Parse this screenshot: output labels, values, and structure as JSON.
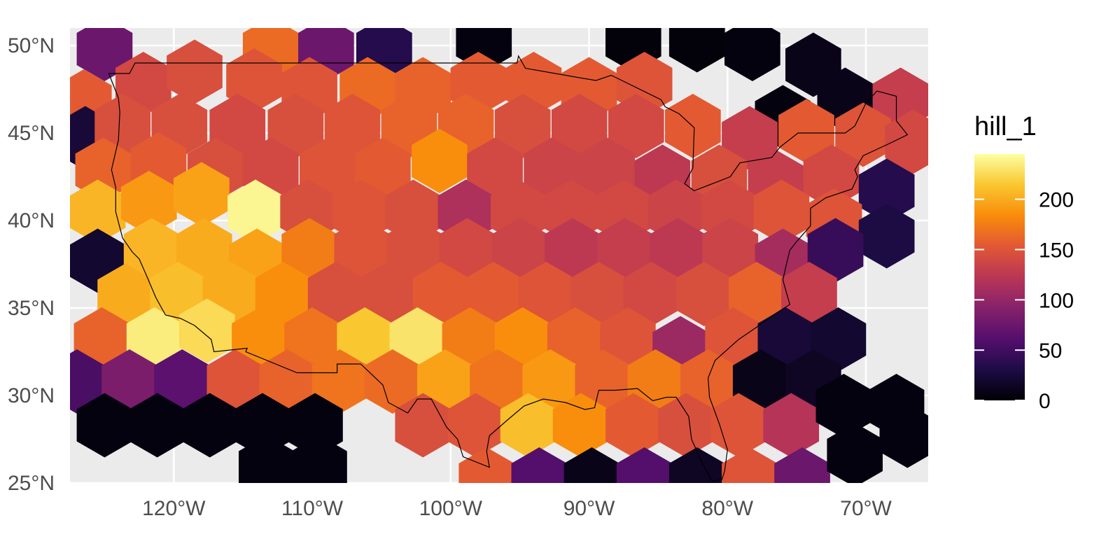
{
  "map": {
    "panel_background": "#ebebeb",
    "gridline_color": "#ffffff",
    "border_color": "#000000",
    "x_ticks": [
      "120°W",
      "110°W",
      "100°W",
      "90°W",
      "80°W",
      "70°W"
    ],
    "y_ticks": [
      "50°N",
      "45°N",
      "40°N",
      "35°N",
      "30°N",
      "25°N"
    ],
    "lon_values": [
      -120,
      -110,
      -100,
      -90,
      -80,
      -70
    ],
    "lat_values": [
      50,
      45,
      40,
      35,
      30,
      25
    ],
    "lon_range": [
      -127.5,
      -65.5
    ],
    "lat_range": [
      25,
      51
    ]
  },
  "legend": {
    "title": "hill_1",
    "labels": [
      "200",
      "150",
      "100",
      "50",
      "0"
    ],
    "values": [
      200,
      150,
      100,
      50,
      0
    ],
    "range": [
      0,
      245
    ],
    "colormap": "inferno"
  },
  "hex_cells": [
    {
      "lon": -125,
      "lat": 49.8,
      "v": 75
    },
    {
      "lon": -113,
      "lat": 49.8,
      "v": 165
    },
    {
      "lon": -109,
      "lat": 49.8,
      "v": 75
    },
    {
      "lon": -104.8,
      "lat": 49.8,
      "v": 35
    },
    {
      "lon": -97.6,
      "lat": 50.3,
      "v": 5
    },
    {
      "lon": -86.8,
      "lat": 50.3,
      "v": 3
    },
    {
      "lon": -82.2,
      "lat": 50.3,
      "v": 3
    },
    {
      "lon": -78.2,
      "lat": 49.8,
      "v": 5
    },
    {
      "lon": -73.8,
      "lat": 48.9,
      "v": 10
    },
    {
      "lon": -126.5,
      "lat": 46.8,
      "v": 155
    },
    {
      "lon": -122.2,
      "lat": 47.8,
      "v": 140
    },
    {
      "lon": -118.5,
      "lat": 48.5,
      "v": 145
    },
    {
      "lon": -114.2,
      "lat": 48,
      "v": 150
    },
    {
      "lon": -110.2,
      "lat": 47.5,
      "v": 150
    },
    {
      "lon": -106,
      "lat": 47.5,
      "v": 165
    },
    {
      "lon": -102,
      "lat": 47.5,
      "v": 160
    },
    {
      "lon": -98,
      "lat": 47.8,
      "v": 155
    },
    {
      "lon": -94,
      "lat": 47.8,
      "v": 155
    },
    {
      "lon": -90,
      "lat": 47.5,
      "v": 155
    },
    {
      "lon": -86,
      "lat": 47.8,
      "v": 150
    },
    {
      "lon": -76,
      "lat": 45.9,
      "v": 5
    },
    {
      "lon": -71.5,
      "lat": 46.9,
      "v": 10
    },
    {
      "lon": -67.5,
      "lat": 46.9,
      "v": 130
    },
    {
      "lon": -126.4,
      "lat": 44.7,
      "v": 25
    },
    {
      "lon": -123.7,
      "lat": 45.4,
      "v": 145
    },
    {
      "lon": -119.6,
      "lat": 45.4,
      "v": 145
    },
    {
      "lon": -115.4,
      "lat": 45.4,
      "v": 140
    },
    {
      "lon": -111.2,
      "lat": 45.4,
      "v": 145
    },
    {
      "lon": -107.1,
      "lat": 45.4,
      "v": 150
    },
    {
      "lon": -103,
      "lat": 45.4,
      "v": 160
    },
    {
      "lon": -98.9,
      "lat": 45.4,
      "v": 160
    },
    {
      "lon": -94.8,
      "lat": 45.4,
      "v": 145
    },
    {
      "lon": -90.7,
      "lat": 45.4,
      "v": 140
    },
    {
      "lon": -86.6,
      "lat": 45.4,
      "v": 140
    },
    {
      "lon": -82.5,
      "lat": 45.4,
      "v": 155
    },
    {
      "lon": -78.4,
      "lat": 44.7,
      "v": 130
    },
    {
      "lon": -74.3,
      "lat": 45.1,
      "v": 155
    },
    {
      "lon": -70.2,
      "lat": 44.9,
      "v": 150
    },
    {
      "lon": -66.6,
      "lat": 44.5,
      "v": 140
    },
    {
      "lon": -125.1,
      "lat": 42.9,
      "v": 160
    },
    {
      "lon": -121.1,
      "lat": 43.2,
      "v": 155
    },
    {
      "lon": -117,
      "lat": 42.9,
      "v": 145
    },
    {
      "lon": -113,
      "lat": 42.9,
      "v": 140
    },
    {
      "lon": -108.9,
      "lat": 42.9,
      "v": 150
    },
    {
      "lon": -104.9,
      "lat": 42.9,
      "v": 155
    },
    {
      "lon": -100.8,
      "lat": 43.4,
      "v": 185
    },
    {
      "lon": -96.8,
      "lat": 42.9,
      "v": 140
    },
    {
      "lon": -92.7,
      "lat": 42.9,
      "v": 135
    },
    {
      "lon": -88.7,
      "lat": 42.9,
      "v": 135
    },
    {
      "lon": -84.7,
      "lat": 42.5,
      "v": 125
    },
    {
      "lon": -80.6,
      "lat": 42.5,
      "v": 145
    },
    {
      "lon": -76.5,
      "lat": 42.2,
      "v": 130
    },
    {
      "lon": -72.5,
      "lat": 42.5,
      "v": 140
    },
    {
      "lon": -68.5,
      "lat": 41.7,
      "v": 35
    },
    {
      "lon": -125.5,
      "lat": 40.5,
      "v": 205
    },
    {
      "lon": -121.8,
      "lat": 41,
      "v": 190
    },
    {
      "lon": -118,
      "lat": 41.5,
      "v": 195
    },
    {
      "lon": -114.1,
      "lat": 40.5,
      "v": 240
    },
    {
      "lon": -110.3,
      "lat": 40.5,
      "v": 145
    },
    {
      "lon": -106.5,
      "lat": 40.5,
      "v": 150
    },
    {
      "lon": -102.7,
      "lat": 40.5,
      "v": 145
    },
    {
      "lon": -98.9,
      "lat": 40.5,
      "v": 115
    },
    {
      "lon": -95.1,
      "lat": 40.5,
      "v": 140
    },
    {
      "lon": -91.3,
      "lat": 40.5,
      "v": 140
    },
    {
      "lon": -87.5,
      "lat": 40.5,
      "v": 140
    },
    {
      "lon": -83.7,
      "lat": 40.5,
      "v": 135
    },
    {
      "lon": -79.9,
      "lat": 40.5,
      "v": 140
    },
    {
      "lon": -76.1,
      "lat": 40.5,
      "v": 150
    },
    {
      "lon": -72.3,
      "lat": 40,
      "v": 150
    },
    {
      "lon": -68.5,
      "lat": 39.1,
      "v": 30
    },
    {
      "lon": -125.5,
      "lat": 37.7,
      "v": 20
    },
    {
      "lon": -121.6,
      "lat": 38.3,
      "v": 205
    },
    {
      "lon": -117.8,
      "lat": 38.3,
      "v": 200
    },
    {
      "lon": -114,
      "lat": 37.7,
      "v": 195
    },
    {
      "lon": -110.2,
      "lat": 38.3,
      "v": 175
    },
    {
      "lon": -106.4,
      "lat": 38.3,
      "v": 150
    },
    {
      "lon": -102.6,
      "lat": 38.3,
      "v": 145
    },
    {
      "lon": -98.8,
      "lat": 38.3,
      "v": 140
    },
    {
      "lon": -95,
      "lat": 38.3,
      "v": 135
    },
    {
      "lon": -91.2,
      "lat": 38.3,
      "v": 125
    },
    {
      "lon": -87.4,
      "lat": 38.3,
      "v": 130
    },
    {
      "lon": -83.6,
      "lat": 38.3,
      "v": 125
    },
    {
      "lon": -79.8,
      "lat": 38.3,
      "v": 135
    },
    {
      "lon": -76,
      "lat": 37.7,
      "v": 110
    },
    {
      "lon": -72.2,
      "lat": 38.3,
      "v": 45
    },
    {
      "lon": -123.5,
      "lat": 35.7,
      "v": 200
    },
    {
      "lon": -119.7,
      "lat": 35.8,
      "v": 210
    },
    {
      "lon": -115.9,
      "lat": 35.8,
      "v": 200
    },
    {
      "lon": -112.1,
      "lat": 35.8,
      "v": 185
    },
    {
      "lon": -108.3,
      "lat": 35.8,
      "v": 145
    },
    {
      "lon": -104.5,
      "lat": 35.8,
      "v": 145
    },
    {
      "lon": -100.7,
      "lat": 35.8,
      "v": 155
    },
    {
      "lon": -96.9,
      "lat": 35.8,
      "v": 155
    },
    {
      "lon": -93.1,
      "lat": 35.8,
      "v": 150
    },
    {
      "lon": -89.3,
      "lat": 35.8,
      "v": 145
    },
    {
      "lon": -85.5,
      "lat": 35.8,
      "v": 140
    },
    {
      "lon": -81.7,
      "lat": 35.8,
      "v": 145
    },
    {
      "lon": -77.9,
      "lat": 35.8,
      "v": 160
    },
    {
      "lon": -74.1,
      "lat": 35.8,
      "v": 130
    },
    {
      "lon": -125.2,
      "lat": 33.2,
      "v": 160
    },
    {
      "lon": -121.4,
      "lat": 33.2,
      "v": 235
    },
    {
      "lon": -117.6,
      "lat": 33.7,
      "v": 225
    },
    {
      "lon": -113.8,
      "lat": 33.2,
      "v": 185
    },
    {
      "lon": -110,
      "lat": 33.2,
      "v": 170
    },
    {
      "lon": -106.2,
      "lat": 33.2,
      "v": 215
    },
    {
      "lon": -102.4,
      "lat": 33.2,
      "v": 230
    },
    {
      "lon": -98.6,
      "lat": 33.2,
      "v": 175
    },
    {
      "lon": -94.8,
      "lat": 33.2,
      "v": 185
    },
    {
      "lon": -91,
      "lat": 33.2,
      "v": 160
    },
    {
      "lon": -87.2,
      "lat": 33.2,
      "v": 150
    },
    {
      "lon": -83.4,
      "lat": 32.7,
      "v": 105
    },
    {
      "lon": -79.6,
      "lat": 33.2,
      "v": 150
    },
    {
      "lon": -75.8,
      "lat": 33.2,
      "v": 25
    },
    {
      "lon": -72,
      "lat": 33.2,
      "v": 20
    },
    {
      "lon": -127,
      "lat": 30.8,
      "v": 55
    },
    {
      "lon": -123.2,
      "lat": 30.8,
      "v": 85
    },
    {
      "lon": -119.4,
      "lat": 30.8,
      "v": 65
    },
    {
      "lon": -115.6,
      "lat": 30.8,
      "v": 150
    },
    {
      "lon": -111.8,
      "lat": 30.8,
      "v": 160
    },
    {
      "lon": -108,
      "lat": 30.8,
      "v": 170
    },
    {
      "lon": -104.2,
      "lat": 30.8,
      "v": 165
    },
    {
      "lon": -100.4,
      "lat": 30.8,
      "v": 195
    },
    {
      "lon": -96.6,
      "lat": 30.8,
      "v": 170
    },
    {
      "lon": -92.8,
      "lat": 30.8,
      "v": 190
    },
    {
      "lon": -89,
      "lat": 30.8,
      "v": 160
    },
    {
      "lon": -85.2,
      "lat": 30.8,
      "v": 175
    },
    {
      "lon": -81.4,
      "lat": 30.8,
      "v": 160
    },
    {
      "lon": -77.6,
      "lat": 30.8,
      "v": 10
    },
    {
      "lon": -73.8,
      "lat": 30.8,
      "v": 15
    },
    {
      "lon": -125,
      "lat": 28.3,
      "v": 5
    },
    {
      "lon": -121.2,
      "lat": 28.3,
      "v": 5
    },
    {
      "lon": -117.4,
      "lat": 28.3,
      "v": 5
    },
    {
      "lon": -113.6,
      "lat": 28.3,
      "v": 5
    },
    {
      "lon": -109.8,
      "lat": 28.3,
      "v": 5
    },
    {
      "lon": -102,
      "lat": 28.3,
      "v": 145
    },
    {
      "lon": -98.2,
      "lat": 28.3,
      "v": 150
    },
    {
      "lon": -94.4,
      "lat": 28.3,
      "v": 210
    },
    {
      "lon": -90.6,
      "lat": 28.3,
      "v": 185
    },
    {
      "lon": -86.8,
      "lat": 28.3,
      "v": 155
    },
    {
      "lon": -83,
      "lat": 28.3,
      "v": 145
    },
    {
      "lon": -79.2,
      "lat": 28.3,
      "v": 150
    },
    {
      "lon": -75.4,
      "lat": 28.3,
      "v": 120
    },
    {
      "lon": -71.6,
      "lat": 29.4,
      "v": 5
    },
    {
      "lon": -67.8,
      "lat": 29.4,
      "v": 5
    },
    {
      "lon": -113.3,
      "lat": 25.9,
      "v": 5
    },
    {
      "lon": -109.5,
      "lat": 25.9,
      "v": 5
    },
    {
      "lon": -97.4,
      "lat": 25.2,
      "v": 155
    },
    {
      "lon": -93.6,
      "lat": 25.2,
      "v": 60
    },
    {
      "lon": -89.8,
      "lat": 25.2,
      "v": 10
    },
    {
      "lon": -86,
      "lat": 25.2,
      "v": 60
    },
    {
      "lon": -82.2,
      "lat": 25.2,
      "v": 15
    },
    {
      "lon": -78.4,
      "lat": 25.2,
      "v": 150
    },
    {
      "lon": -74.6,
      "lat": 25.2,
      "v": 75
    },
    {
      "lon": -70.8,
      "lat": 26.6,
      "v": 5
    },
    {
      "lon": -67,
      "lat": 27.7,
      "v": 5
    },
    {
      "lon": -63.2,
      "lat": 26.6,
      "v": 5
    }
  ],
  "us_outline": [
    [
      -124.7,
      48.4
    ],
    [
      -123.2,
      48.4
    ],
    [
      -122.8,
      49.0
    ],
    [
      -95.2,
      49.0
    ],
    [
      -95.1,
      49.4
    ],
    [
      -94.6,
      48.7
    ],
    [
      -91.0,
      48.2
    ],
    [
      -89.5,
      48.0
    ],
    [
      -88.4,
      48.3
    ],
    [
      -84.8,
      46.9
    ],
    [
      -84.5,
      46.5
    ],
    [
      -83.5,
      46.1
    ],
    [
      -82.4,
      45.3
    ],
    [
      -82.5,
      43.0
    ],
    [
      -83.1,
      42.1
    ],
    [
      -82.4,
      41.7
    ],
    [
      -79.8,
      42.5
    ],
    [
      -79.1,
      43.3
    ],
    [
      -76.8,
      43.6
    ],
    [
      -76.2,
      44.2
    ],
    [
      -74.9,
      45.0
    ],
    [
      -71.5,
      45.0
    ],
    [
      -70.8,
      45.4
    ],
    [
      -70.0,
      46.7
    ],
    [
      -69.2,
      47.4
    ],
    [
      -67.8,
      47.1
    ],
    [
      -67.8,
      45.7
    ],
    [
      -67.0,
      44.9
    ],
    [
      -68.3,
      44.4
    ],
    [
      -70.2,
      43.7
    ],
    [
      -70.8,
      42.9
    ],
    [
      -70.6,
      42.5
    ],
    [
      -71.0,
      41.8
    ],
    [
      -72.9,
      41.3
    ],
    [
      -74.0,
      40.7
    ],
    [
      -74.0,
      39.7
    ],
    [
      -75.0,
      38.8
    ],
    [
      -75.5,
      38.3
    ],
    [
      -75.8,
      37.3
    ],
    [
      -76.0,
      36.6
    ],
    [
      -75.5,
      35.2
    ],
    [
      -76.5,
      34.7
    ],
    [
      -77.9,
      33.9
    ],
    [
      -79.2,
      33.2
    ],
    [
      -80.9,
      32.0
    ],
    [
      -81.4,
      31.0
    ],
    [
      -81.3,
      29.9
    ],
    [
      -80.6,
      28.4
    ],
    [
      -80.0,
      26.9
    ],
    [
      -80.2,
      25.7
    ],
    [
      -80.4,
      25.2
    ],
    [
      -81.1,
      25.1
    ],
    [
      -81.8,
      26.1
    ],
    [
      -82.6,
      27.5
    ],
    [
      -82.8,
      28.8
    ],
    [
      -83.7,
      29.9
    ],
    [
      -84.4,
      29.9
    ],
    [
      -85.4,
      29.7
    ],
    [
      -86.5,
      30.4
    ],
    [
      -88.1,
      30.3
    ],
    [
      -89.3,
      30.3
    ],
    [
      -89.6,
      29.3
    ],
    [
      -90.3,
      29.2
    ],
    [
      -91.7,
      29.6
    ],
    [
      -93.3,
      29.8
    ],
    [
      -94.7,
      29.4
    ],
    [
      -95.9,
      28.6
    ],
    [
      -97.2,
      27.7
    ],
    [
      -97.4,
      26.8
    ],
    [
      -97.2,
      25.9
    ],
    [
      -99.1,
      26.5
    ],
    [
      -99.5,
      27.5
    ],
    [
      -100.3,
      28.2
    ],
    [
      -101.4,
      29.8
    ],
    [
      -102.4,
      29.8
    ],
    [
      -103.1,
      29.0
    ],
    [
      -104.5,
      29.6
    ],
    [
      -104.9,
      30.6
    ],
    [
      -106.5,
      31.8
    ],
    [
      -108.2,
      31.8
    ],
    [
      -108.2,
      31.3
    ],
    [
      -111.1,
      31.3
    ],
    [
      -114.8,
      32.5
    ],
    [
      -114.7,
      32.7
    ],
    [
      -117.1,
      32.5
    ],
    [
      -117.3,
      33.2
    ],
    [
      -118.5,
      34.0
    ],
    [
      -119.5,
      34.4
    ],
    [
      -120.6,
      34.6
    ],
    [
      -121.3,
      35.6
    ],
    [
      -122.0,
      36.9
    ],
    [
      -122.5,
      37.8
    ],
    [
      -123.0,
      38.2
    ],
    [
      -123.7,
      39.0
    ],
    [
      -124.2,
      40.5
    ],
    [
      -124.2,
      41.9
    ],
    [
      -124.5,
      42.9
    ],
    [
      -124.0,
      44.6
    ],
    [
      -123.9,
      46.2
    ],
    [
      -124.0,
      47.0
    ],
    [
      -124.7,
      48.4
    ]
  ]
}
